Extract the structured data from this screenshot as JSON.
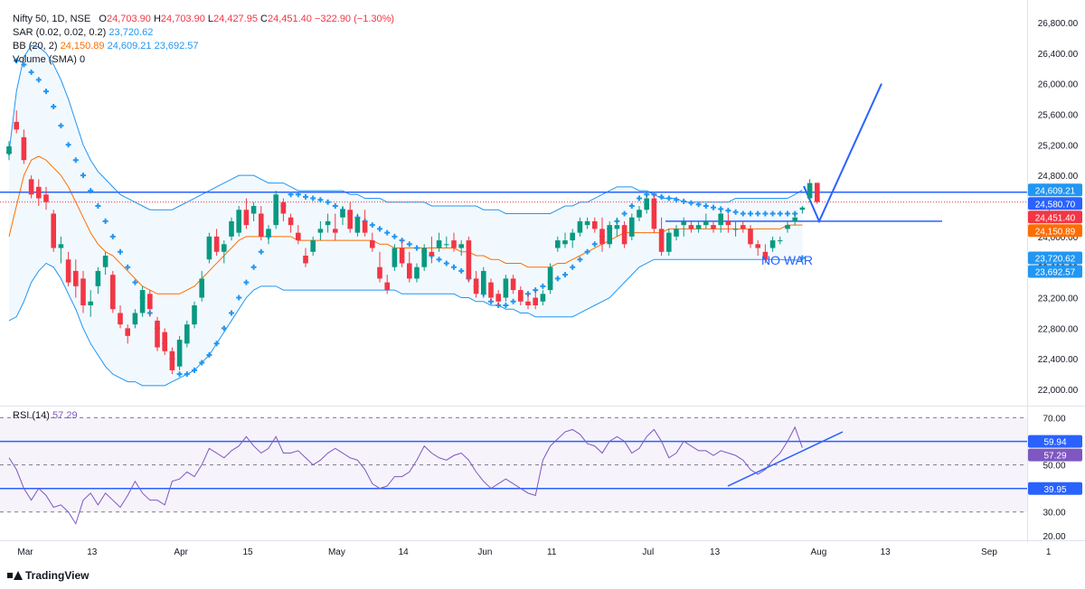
{
  "legend": {
    "symbol": "Nifty 50, 1D, NSE",
    "o_label": "O",
    "o": "24,703.90",
    "h_label": "H",
    "h": "24,703.90",
    "l_label": "L",
    "l": "24,427.95",
    "c_label": "C",
    "c": "24,451.40",
    "change": "−322.90 (−1.30%)",
    "sar_label": "SAR (0.02, 0.02, 0.2)",
    "sar_value": "23,720.62",
    "bb_label": "BB (20, 2)",
    "bb_basis": "24,150.89",
    "bb_upper": "24,609.21",
    "bb_lower": "23,692.57",
    "vol_label": "Volume (SMA)",
    "vol_value": "0"
  },
  "rsi_legend": {
    "label": "RSI (14)",
    "value": "57.29"
  },
  "annotation": {
    "text": "NO WAR"
  },
  "branding": {
    "text": "TradingView"
  },
  "colors": {
    "up": "#089981",
    "down": "#f23645",
    "sar": "#2196f3",
    "bb": "#2196f3",
    "basis": "#ff6d00",
    "rsi": "#7e57c2",
    "drawing": "#2962ff"
  },
  "price_tags": [
    {
      "value": 24609.21,
      "text": "24,609.21",
      "color": "#2196f3"
    },
    {
      "value": 24580.7,
      "text": "24,580.70",
      "color": "#2962ff"
    },
    {
      "value": 24451.4,
      "text": "24,451.40",
      "color": "#f23645"
    },
    {
      "value": 24150.89,
      "text": "24,150.89",
      "color": "#ff6d00"
    },
    {
      "value": 23720.62,
      "text": "23,720.62",
      "color": "#2196f3"
    },
    {
      "value": 23692.57,
      "text": "23,692.57",
      "color": "#2196f3"
    }
  ],
  "rsi_tags": [
    {
      "value": 59.94,
      "text": "59.94",
      "color": "#2962ff"
    },
    {
      "value": 57.29,
      "text": "57.29",
      "color": "#7e57c2"
    },
    {
      "value": 39.95,
      "text": "39.95",
      "color": "#2962ff"
    }
  ],
  "chart_data": {
    "type": "candlestick",
    "price_axis": {
      "ylim": [
        21800,
        27000
      ],
      "ticks": [
        "22,000.00",
        "22,400.00",
        "22,800.00",
        "23,200.00",
        "23,600.00",
        "24,000.00",
        "24,400.00",
        "24,800.00",
        "25,200.00",
        "25,600.00",
        "26,000.00",
        "26,400.00",
        "26,800.00"
      ],
      "tick_values": [
        22000,
        22400,
        22800,
        23200,
        23600,
        24000,
        24400,
        24800,
        25200,
        25600,
        26000,
        26400,
        26800
      ]
    },
    "rsi_axis": {
      "ylim": [
        18,
        74
      ],
      "ticks": [
        "20.00",
        "30.00",
        "50.00",
        "70.00"
      ],
      "tick_values": [
        20,
        30,
        50,
        70
      ]
    },
    "x_ticks": [
      {
        "label": "Mar",
        "bar": 0
      },
      {
        "label": "13",
        "bar": 9
      },
      {
        "label": "Apr",
        "bar": 21
      },
      {
        "label": "15",
        "bar": 30
      },
      {
        "label": "May",
        "bar": 42
      },
      {
        "label": "14",
        "bar": 51
      },
      {
        "label": "Jun",
        "bar": 62
      },
      {
        "label": "11",
        "bar": 71
      },
      {
        "label": "Jul",
        "bar": 84
      },
      {
        "label": "13",
        "bar": 93
      },
      {
        "label": "Aug",
        "bar": 107
      },
      {
        "label": "13",
        "bar": 116
      },
      {
        "label": "Sep",
        "bar": 130
      },
      {
        "label": "1",
        "bar": 138
      }
    ],
    "ohlc": [
      [
        25080,
        25250,
        25000,
        25180
      ],
      [
        25500,
        25650,
        25350,
        25400
      ],
      [
        25300,
        25400,
        24950,
        25000
      ],
      [
        24750,
        24800,
        24500,
        24550
      ],
      [
        24650,
        24750,
        24400,
        24500
      ],
      [
        24550,
        24650,
        24350,
        24450
      ],
      [
        24300,
        24350,
        23800,
        23850
      ],
      [
        23850,
        24000,
        23650,
        23900
      ],
      [
        23700,
        23800,
        23350,
        23400
      ],
      [
        23550,
        23700,
        23200,
        23350
      ],
      [
        23450,
        23550,
        23000,
        23100
      ],
      [
        23100,
        23300,
        22950,
        23150
      ],
      [
        23350,
        23600,
        23250,
        23550
      ],
      [
        23600,
        23800,
        23500,
        23750
      ],
      [
        23500,
        23550,
        23000,
        23050
      ],
      [
        23000,
        23100,
        22800,
        22850
      ],
      [
        22800,
        22850,
        22600,
        22700
      ],
      [
        22850,
        23050,
        22800,
        23000
      ],
      [
        23000,
        23350,
        22950,
        23300
      ],
      [
        23250,
        23300,
        22950,
        23050
      ],
      [
        22900,
        22950,
        22500,
        22550
      ],
      [
        22750,
        22800,
        22450,
        22500
      ],
      [
        22500,
        22550,
        22200,
        22250
      ],
      [
        22300,
        22700,
        22250,
        22650
      ],
      [
        22600,
        22900,
        22550,
        22850
      ],
      [
        22850,
        23150,
        22800,
        23100
      ],
      [
        23200,
        23550,
        23150,
        23450
      ],
      [
        23700,
        24050,
        23650,
        24000
      ],
      [
        24000,
        24100,
        23750,
        23800
      ],
      [
        23800,
        23950,
        23650,
        23900
      ],
      [
        24000,
        24250,
        23950,
        24200
      ],
      [
        24050,
        24400,
        24000,
        24350
      ],
      [
        24350,
        24500,
        24100,
        24150
      ],
      [
        24300,
        24450,
        24200,
        24400
      ],
      [
        24300,
        24400,
        23950,
        24000
      ],
      [
        24000,
        24150,
        23900,
        24100
      ],
      [
        24150,
        24600,
        24100,
        24550
      ],
      [
        24450,
        24500,
        24200,
        24300
      ],
      [
        24250,
        24300,
        24050,
        24150
      ],
      [
        24050,
        24150,
        23900,
        23950
      ],
      [
        23750,
        23850,
        23600,
        23650
      ],
      [
        23800,
        24000,
        23750,
        23950
      ],
      [
        24050,
        24200,
        23950,
        24100
      ],
      [
        24150,
        24300,
        24050,
        24200
      ],
      [
        24100,
        24300,
        23950,
        24050
      ],
      [
        24250,
        24400,
        24150,
        24350
      ],
      [
        24350,
        24450,
        24050,
        24100
      ],
      [
        24050,
        24300,
        24000,
        24250
      ],
      [
        24200,
        24350,
        24000,
        24050
      ],
      [
        23950,
        24050,
        23800,
        23850
      ],
      [
        23600,
        23800,
        23400,
        23450
      ],
      [
        23400,
        23500,
        23250,
        23300
      ],
      [
        23600,
        23900,
        23550,
        23850
      ],
      [
        23850,
        23950,
        23600,
        23650
      ],
      [
        23650,
        23800,
        23400,
        23450
      ],
      [
        23450,
        23650,
        23400,
        23600
      ],
      [
        23600,
        23900,
        23550,
        23850
      ],
      [
        23800,
        24000,
        23650,
        23750
      ],
      [
        23850,
        24050,
        23800,
        23950
      ],
      [
        23900,
        24000,
        23850,
        23900
      ],
      [
        23950,
        24050,
        23800,
        23850
      ],
      [
        23850,
        23950,
        23750,
        23900
      ],
      [
        23950,
        24000,
        23400,
        23450
      ],
      [
        23450,
        23550,
        23200,
        23250
      ],
      [
        23250,
        23600,
        23200,
        23550
      ],
      [
        23400,
        23450,
        23150,
        23200
      ],
      [
        23250,
        23300,
        23100,
        23150
      ],
      [
        23200,
        23500,
        23150,
        23450
      ],
      [
        23450,
        23500,
        23250,
        23300
      ],
      [
        23300,
        23350,
        23100,
        23150
      ],
      [
        23150,
        23250,
        23050,
        23100
      ],
      [
        23200,
        23300,
        23050,
        23100
      ],
      [
        23150,
        23300,
        23100,
        23250
      ],
      [
        23300,
        23650,
        23250,
        23600
      ],
      [
        23850,
        24000,
        23800,
        23950
      ],
      [
        23900,
        24050,
        23850,
        23950
      ],
      [
        23950,
        24100,
        23850,
        24050
      ],
      [
        24050,
        24250,
        24000,
        24200
      ],
      [
        24150,
        24250,
        24100,
        24200
      ],
      [
        24200,
        24250,
        24050,
        24100
      ],
      [
        24100,
        24250,
        23800,
        23900
      ],
      [
        23900,
        24200,
        23850,
        24150
      ],
      [
        24100,
        24250,
        24000,
        24150
      ],
      [
        24150,
        24200,
        23850,
        23900
      ],
      [
        24000,
        24300,
        23950,
        24250
      ],
      [
        24250,
        24400,
        24200,
        24350
      ],
      [
        24350,
        24550,
        24300,
        24500
      ],
      [
        24500,
        24550,
        24050,
        24100
      ],
      [
        24100,
        24250,
        23750,
        23800
      ],
      [
        23800,
        24100,
        23750,
        24050
      ],
      [
        24000,
        24150,
        23950,
        24100
      ],
      [
        24150,
        24250,
        24000,
        24200
      ],
      [
        24150,
        24200,
        24050,
        24100
      ],
      [
        24100,
        24200,
        24050,
        24150
      ],
      [
        24150,
        24300,
        24100,
        24200
      ],
      [
        24150,
        24200,
        24050,
        24100
      ],
      [
        24150,
        24350,
        24050,
        24300
      ],
      [
        24200,
        24300,
        24050,
        24150
      ],
      [
        24100,
        24200,
        24000,
        24100
      ],
      [
        24150,
        24200,
        24050,
        24100
      ],
      [
        24100,
        24150,
        23850,
        23900
      ],
      [
        23900,
        23950,
        23750,
        23850
      ],
      [
        23800,
        23900,
        23650,
        23700
      ],
      [
        23850,
        24000,
        23800,
        23950
      ],
      [
        23950,
        24000,
        23900,
        23950
      ],
      [
        24100,
        24200,
        24050,
        24150
      ],
      [
        24200,
        24300,
        24150,
        24250
      ],
      [
        24350,
        24400,
        24300,
        24380
      ],
      [
        24500,
        24750,
        24450,
        24700
      ],
      [
        24703,
        24703,
        24428,
        24451
      ]
    ],
    "bb_upper": [
      25100,
      25900,
      26350,
      26500,
      26480,
      26400,
      26250,
      26050,
      25800,
      25500,
      25200,
      25000,
      24850,
      24750,
      24650,
      24550,
      24500,
      24450,
      24400,
      24350,
      24350,
      24350,
      24350,
      24400,
      24450,
      24500,
      24550,
      24600,
      24650,
      24700,
      24750,
      24800,
      24800,
      24800,
      24750,
      24700,
      24700,
      24700,
      24650,
      24600,
      24600,
      24600,
      24600,
      24600,
      24600,
      24600,
      24550,
      24550,
      24500,
      24500,
      24500,
      24450,
      24450,
      24450,
      24450,
      24450,
      24450,
      24400,
      24400,
      24400,
      24400,
      24400,
      24400,
      24400,
      24350,
      24350,
      24350,
      24300,
      24300,
      24300,
      24300,
      24300,
      24300,
      24300,
      24350,
      24400,
      24400,
      24450,
      24450,
      24500,
      24550,
      24600,
      24650,
      24650,
      24650,
      24600,
      24600,
      24550,
      24500,
      24500,
      24500,
      24450,
      24450,
      24450,
      24450,
      24450,
      24450,
      24450,
      24500,
      24500,
      24500,
      24500,
      24500,
      24500,
      24500,
      24500,
      24550,
      24609
    ],
    "bb_basis": [
      24000,
      24400,
      24800,
      25000,
      25050,
      25000,
      24900,
      24800,
      24650,
      24450,
      24250,
      24050,
      23900,
      23800,
      23750,
      23650,
      23550,
      23450,
      23350,
      23300,
      23250,
      23250,
      23250,
      23250,
      23300,
      23350,
      23450,
      23550,
      23650,
      23750,
      23850,
      23950,
      24000,
      24000,
      24000,
      24000,
      24000,
      24000,
      24000,
      23950,
      23950,
      23950,
      23950,
      23950,
      23950,
      23950,
      23950,
      23950,
      23950,
      23950,
      23900,
      23900,
      23850,
      23850,
      23850,
      23850,
      23850,
      23850,
      23850,
      23850,
      23850,
      23800,
      23800,
      23750,
      23750,
      23700,
      23700,
      23650,
      23650,
      23650,
      23600,
      23600,
      23600,
      23600,
      23650,
      23650,
      23700,
      23750,
      23800,
      23850,
      23900,
      23950,
      24000,
      24050,
      24050,
      24050,
      24050,
      24050,
      24050,
      24100,
      24100,
      24100,
      24100,
      24100,
      24100,
      24100,
      24100,
      24100,
      24100,
      24100,
      24100,
      24100,
      24100,
      24100,
      24100,
      24150,
      24150,
      24150
    ],
    "bb_lower": [
      22900,
      22950,
      23150,
      23400,
      23550,
      23650,
      23600,
      23450,
      23250,
      23050,
      22800,
      22600,
      22450,
      22300,
      22200,
      22150,
      22100,
      22100,
      22050,
      22050,
      22050,
      22050,
      22100,
      22150,
      22200,
      22250,
      22350,
      22450,
      22600,
      22750,
      22900,
      23050,
      23200,
      23300,
      23350,
      23350,
      23350,
      23300,
      23300,
      23300,
      23300,
      23300,
      23300,
      23300,
      23300,
      23300,
      23300,
      23300,
      23300,
      23300,
      23300,
      23300,
      23300,
      23250,
      23250,
      23250,
      23250,
      23250,
      23250,
      23250,
      23250,
      23200,
      23200,
      23150,
      23150,
      23100,
      23100,
      23050,
      23050,
      23000,
      23000,
      22950,
      22950,
      22950,
      22950,
      22950,
      22950,
      23000,
      23050,
      23100,
      23150,
      23200,
      23300,
      23400,
      23500,
      23600,
      23650,
      23700,
      23700,
      23700,
      23700,
      23700,
      23700,
      23700,
      23700,
      23700,
      23700,
      23700,
      23700,
      23700,
      23700,
      23700,
      23700,
      23700,
      23700,
      23693,
      23693,
      23693
    ],
    "sar": [
      25100,
      26300,
      26250,
      26150,
      26050,
      25900,
      25700,
      25450,
      25200,
      25000,
      24800,
      24600,
      24400,
      24200,
      24000,
      23800,
      23600,
      23400,
      23200,
      23000,
      22800,
      22600,
      22400,
      22200,
      22200,
      22250,
      22350,
      22450,
      22600,
      22800,
      23000,
      23200,
      23400,
      23600,
      23800,
      24000,
      24200,
      24400,
      24550,
      24550,
      24520,
      24500,
      24480,
      24450,
      24400,
      24350,
      24300,
      24250,
      24200,
      24150,
      24100,
      24050,
      24000,
      23950,
      23900,
      23850,
      23800,
      23750,
      23700,
      23650,
      23600,
      23550,
      23450,
      23350,
      23250,
      23150,
      23100,
      23100,
      23150,
      23200,
      23250,
      23300,
      23350,
      23400,
      23450,
      23500,
      23600,
      23700,
      23800,
      23900,
      24000,
      24100,
      24200,
      24300,
      24400,
      24500,
      24550,
      24550,
      24520,
      24500,
      24480,
      24460,
      24440,
      24420,
      24400,
      24380,
      24360,
      24340,
      24320,
      24300,
      24300,
      24300,
      24300,
      24300,
      24300,
      24300,
      24300,
      23720
    ],
    "rsi": [
      53,
      48,
      40,
      35,
      40,
      37,
      32,
      33,
      30,
      25,
      35,
      38,
      33,
      38,
      35,
      32,
      37,
      43,
      38,
      35,
      35,
      33,
      43,
      44,
      47,
      45,
      50,
      57,
      55,
      53,
      56,
      58,
      62,
      58,
      55,
      57,
      62,
      55,
      55,
      56,
      53,
      50,
      52,
      55,
      57,
      55,
      53,
      52,
      48,
      42,
      40,
      41,
      45,
      45,
      47,
      52,
      58,
      55,
      53,
      52,
      54,
      55,
      52,
      47,
      43,
      40,
      42,
      44,
      42,
      40,
      38,
      37,
      52,
      58,
      61,
      64,
      65,
      63,
      59,
      58,
      55,
      60,
      62,
      60,
      55,
      57,
      62,
      65,
      60,
      53,
      55,
      60,
      58,
      56,
      56,
      54,
      56,
      55,
      54,
      52,
      48,
      46,
      48,
      52,
      55,
      60,
      66,
      57.29
    ]
  }
}
